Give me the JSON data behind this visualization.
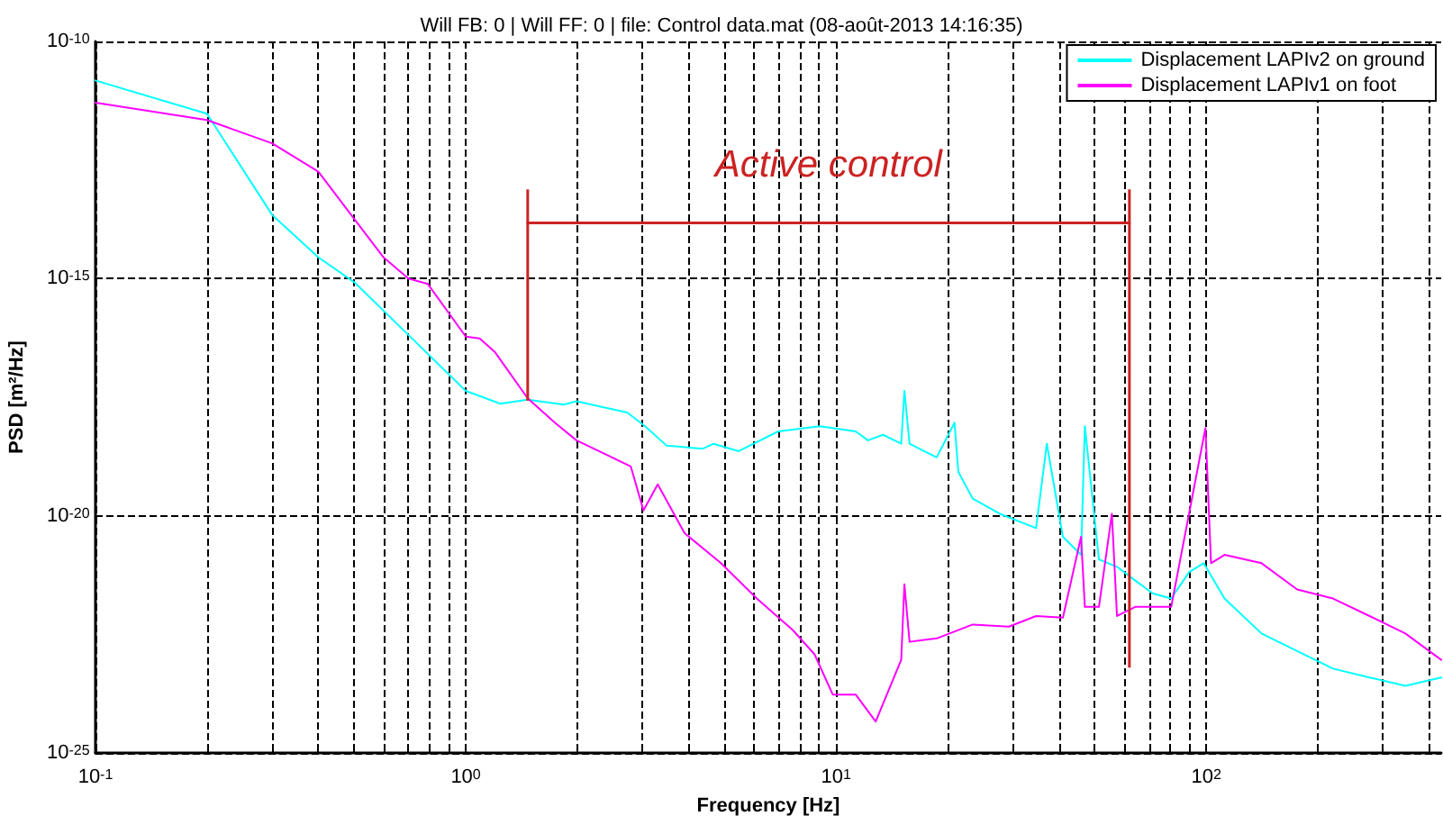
{
  "chart_data": {
    "type": "line",
    "title": "Will FB: 0 | Will FF: 0 | file: Control data.mat (08-août-2013 14:16:35)",
    "xlabel": "Frequency [Hz]",
    "ylabel": "PSD [m²/Hz]",
    "log": "xy",
    "grid": true,
    "legend": "top right",
    "marker": "none",
    "line_style": "solid",
    "xlim": [
      0.1,
      431
    ],
    "ylim": [
      1e-25,
      1e-10
    ],
    "xticks": [
      {
        "value": 0.1,
        "label": "10$^{-1}$"
      },
      {
        "value": 0.2,
        "label": null
      },
      {
        "value": 0.3,
        "label": null
      },
      {
        "value": 0.4,
        "label": null
      },
      {
        "value": 0.5,
        "label": null
      },
      {
        "value": 0.6,
        "label": null
      },
      {
        "value": 0.7,
        "label": null
      },
      {
        "value": 0.8,
        "label": null
      },
      {
        "value": 0.9,
        "label": null
      },
      {
        "value": 1,
        "label": "10$^{0}$"
      },
      {
        "value": 2,
        "label": null
      },
      {
        "value": 3,
        "label": null
      },
      {
        "value": 4,
        "label": null
      },
      {
        "value": 5,
        "label": null
      },
      {
        "value": 6,
        "label": null
      },
      {
        "value": 7,
        "label": null
      },
      {
        "value": 8,
        "label": null
      },
      {
        "value": 9,
        "label": null
      },
      {
        "value": 10,
        "label": "10$^{1}$"
      },
      {
        "value": 20,
        "label": null
      },
      {
        "value": 30,
        "label": null
      },
      {
        "value": 40,
        "label": null
      },
      {
        "value": 50,
        "label": null
      },
      {
        "value": 60,
        "label": null
      },
      {
        "value": 70,
        "label": null
      },
      {
        "value": 80,
        "label": null
      },
      {
        "value": 90,
        "label": null
      },
      {
        "value": 100,
        "label": "10$^{2}$"
      },
      {
        "value": 200,
        "label": null
      },
      {
        "value": 300,
        "label": null
      },
      {
        "value": 400,
        "label": null
      }
    ],
    "yticks": [
      {
        "value": 1e-25,
        "label": "10$^{-25}$"
      },
      {
        "value": 1e-20,
        "label": "10$^{-20}$"
      },
      {
        "value": 1e-15,
        "label": "10$^{-15}$"
      },
      {
        "value": 1e-10,
        "label": "10$^{-10}$"
      }
    ],
    "annotations": [
      "Active control"
    ],
    "ref_lines": [
      {
        "axis": "x",
        "value": 1.47,
        "color": "#cc2222"
      },
      {
        "axis": "x",
        "value": 62,
        "color": "#cc2222"
      }
    ],
    "series": [
      {
        "name": "Displacement LAPIv2 on ground",
        "color": "#00ffff",
        "x": [
          0.1,
          0.2,
          0.3,
          0.4,
          0.5,
          0.7,
          1.0,
          1.24,
          1.47,
          1.84,
          1.99,
          2.73,
          3.05,
          3.49,
          4.37,
          4.67,
          5.46,
          6.98,
          9.04,
          11.3,
          12.2,
          13.4,
          15.0,
          15.3,
          15.8,
          18.7,
          20.9,
          21.4,
          23.4,
          27.7,
          34.7,
          37.1,
          41.0,
          45.9,
          47.0,
          51.3,
          57.4,
          64.3,
          71.8,
          80.4,
          89.9,
          98.4,
          112,
          141,
          176,
          220,
          276,
          345,
          431
        ],
        "values": [
          1.5e-11,
          3e-12,
          2.2e-14,
          2.8e-15,
          8.4e-16,
          6.5e-17,
          4.3e-18,
          2.3e-18,
          2.8e-18,
          2.2e-18,
          2.6e-18,
          1.5e-18,
          7.7e-19,
          3e-19,
          2.6e-19,
          3.3e-19,
          2.3e-19,
          6e-19,
          7.7e-19,
          6e-19,
          3.9e-19,
          5.1e-19,
          3.3e-19,
          4.3e-18,
          3.3e-19,
          1.7e-19,
          9.2e-19,
          8.4e-20,
          2.3e-20,
          1.1e-20,
          5.5e-21,
          3.3e-19,
          3.6e-21,
          1.5e-21,
          7.7e-19,
          1.2e-21,
          8.4e-22,
          4.3e-22,
          2.3e-22,
          1.8e-22,
          6.5e-22,
          1e-21,
          1.8e-22,
          3.3e-23,
          1.4e-23,
          6e-24,
          3.9e-24,
          2.6e-24,
          3.9e-24
        ]
      },
      {
        "type": "line",
        "color": "#cc2222",
        "x": [
          1.47,
          62
        ],
        "values": [
          1.5e-14,
          1.5e-14
        ]
      },
      {
        "name": "Displacement LAPIv1 on foot",
        "color": "#ff00ff",
        "x": [
          0.1,
          0.2,
          0.3,
          0.4,
          0.5,
          0.6,
          0.7,
          0.79,
          1.0,
          1.09,
          1.2,
          1.47,
          1.74,
          1.99,
          2.79,
          3.02,
          3.3,
          3.9,
          4.89,
          6.11,
          7.64,
          8.75,
          9.8,
          11.3,
          12.8,
          15.0,
          15.3,
          15.8,
          18.7,
          23.4,
          29.3,
          34.7,
          41.0,
          45.9,
          47.0,
          51.3,
          55.6,
          57.4,
          64.3,
          80.4,
          99.5,
          103,
          112,
          141,
          176,
          220,
          276,
          345,
          431
        ],
        "values": [
          5.1e-12,
          2.2e-12,
          7.1e-13,
          1.8e-13,
          1.8e-14,
          2.8e-15,
          1e-15,
          7.7e-16,
          6e-17,
          5.5e-17,
          2.8e-17,
          3e-18,
          9.2e-19,
          3.9e-19,
          1.1e-19,
          1.3e-20,
          4.6e-20,
          4.3e-21,
          1e-21,
          1.8e-22,
          3.9e-23,
          1.2e-23,
          1.7e-24,
          1.7e-24,
          4.6e-25,
          9.2e-24,
          3.6e-22,
          2.2e-23,
          2.6e-23,
          5.1e-23,
          4.6e-23,
          7.7e-23,
          7.1e-23,
          3.6e-21,
          1.2e-22,
          1.2e-22,
          1.1e-20,
          7.7e-23,
          1.2e-22,
          1.2e-22,
          7.1e-19,
          1e-21,
          1.5e-21,
          1e-21,
          2.8e-22,
          1.8e-22,
          7.7e-23,
          3.3e-23,
          9.2e-24
        ]
      }
    ]
  }
}
